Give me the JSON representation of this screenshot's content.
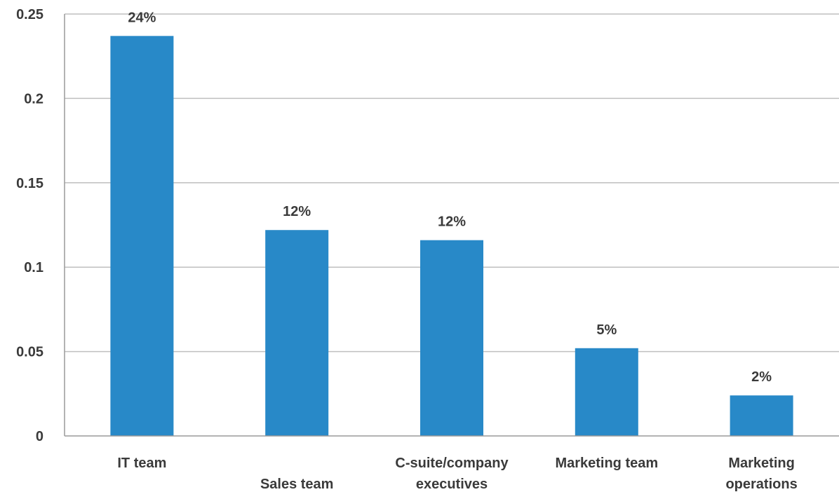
{
  "chart_data": {
    "type": "bar",
    "title": "",
    "xlabel": "",
    "ylabel": "",
    "categories": [
      [
        "IT team"
      ],
      [
        "Sales team"
      ],
      [
        "C-suite/company",
        "executives"
      ],
      [
        "Marketing team"
      ],
      [
        "Marketing",
        "operations"
      ]
    ],
    "category_label_row": [
      "top",
      "bottom",
      "top",
      "top",
      "top"
    ],
    "values": [
      0.237,
      0.122,
      0.116,
      0.052,
      0.024
    ],
    "data_labels": [
      "24%",
      "12%",
      "12%",
      "5%",
      "2%"
    ],
    "ylim": [
      0,
      0.25
    ],
    "yticks": [
      0,
      0.05,
      0.1,
      0.15,
      0.2,
      0.25
    ],
    "ytick_labels": [
      "0",
      "0.05",
      "0.1",
      "0.15",
      "0.2",
      "0.25"
    ],
    "grid": true,
    "legend": "none",
    "colors": {
      "bar": "#2889c8",
      "grid": "#bfbfbf",
      "axis": "#9a9a9a",
      "text": "#3a3a3a"
    }
  }
}
